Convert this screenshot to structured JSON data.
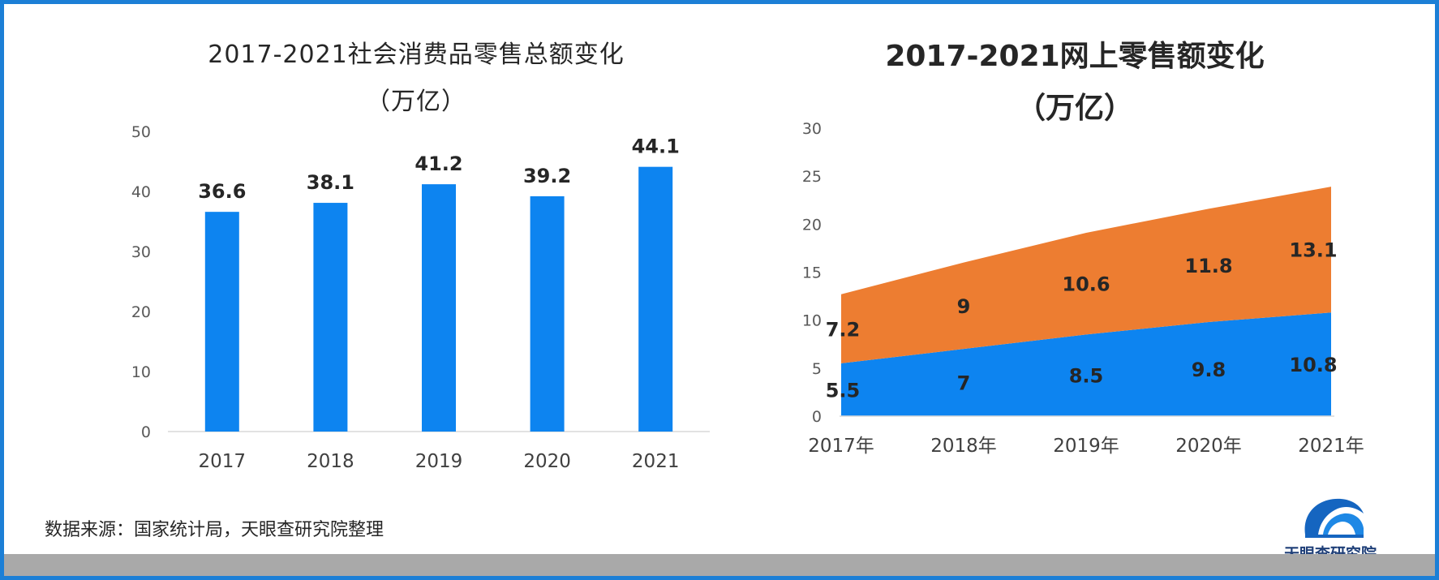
{
  "chart_data": [
    {
      "type": "bar",
      "title": "2017-2021社会消费品零售总额变化",
      "subtitle": "（万亿）",
      "categories": [
        "2017",
        "2018",
        "2019",
        "2020",
        "2021"
      ],
      "values": [
        36.6,
        38.1,
        41.2,
        39.2,
        44.1
      ],
      "data_labels": [
        "36.6",
        "38.1",
        "41.2",
        "39.2",
        "44.1"
      ],
      "ylim": [
        0,
        50
      ],
      "yticks": [
        0,
        10,
        20,
        30,
        40,
        50
      ],
      "ytick_labels": [
        "0",
        "10",
        "20",
        "30",
        "40",
        "50"
      ],
      "grid": false,
      "colors": {
        "bar": "#0d84f0"
      }
    },
    {
      "type": "area",
      "stacked": true,
      "title": "2017-2021网上零售额变化",
      "subtitle": "（万亿）",
      "categories": [
        "2017年",
        "2018年",
        "2019年",
        "2020年",
        "2021年"
      ],
      "series": [
        {
          "values": [
            5.5,
            7,
            8.5,
            9.8,
            10.8
          ],
          "labels": [
            "5.5",
            "7",
            "8.5",
            "9.8",
            "10.8"
          ],
          "color": "#0d84f0"
        },
        {
          "values": [
            7.2,
            9,
            10.6,
            11.8,
            13.1
          ],
          "labels": [
            "7.2",
            "9",
            "10.6",
            "11.8",
            "13.1"
          ],
          "color": "#ed7d31"
        }
      ],
      "ylim": [
        0,
        30
      ],
      "yticks": [
        0,
        5,
        10,
        15,
        20,
        25,
        30
      ],
      "ytick_labels": [
        "0",
        "5",
        "10",
        "15",
        "20",
        "25",
        "30"
      ],
      "grid": false
    }
  ],
  "footer": {
    "source": "数据来源：国家统计局，天眼查研究院整理",
    "logo_text": "天眼查研究院"
  },
  "colors": {
    "border": "#1c7fd6",
    "bottom_bar": "#a9a9a9"
  },
  "icons": {
    "logo": "tianyancha-logo-icon"
  }
}
